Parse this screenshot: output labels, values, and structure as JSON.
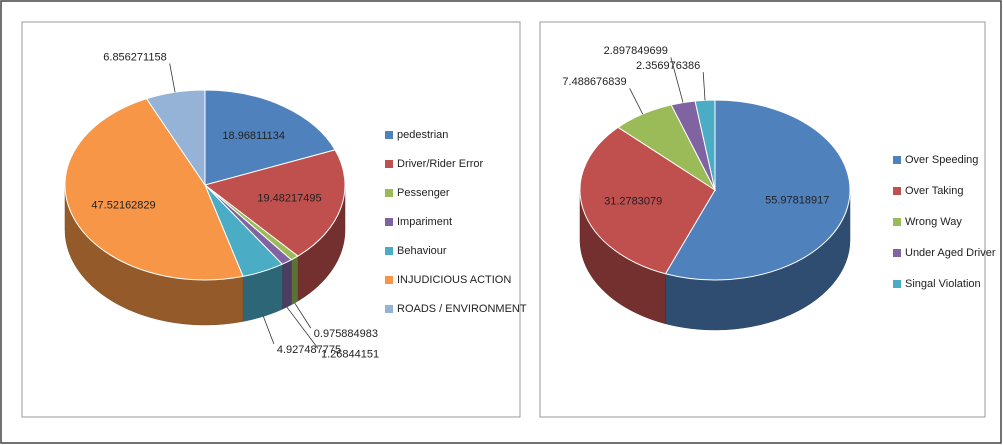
{
  "chart_data": [
    {
      "type": "pie",
      "categories": [
        "pedestrian",
        "Driver/Rider Error",
        "Pessenger",
        "Impariment",
        "Behaviour",
        "INJUDICIOUS ACTION",
        "ROADS / ENVIRONMENT"
      ],
      "values": [
        18.96811134,
        19.48217495,
        0.975884983,
        1.26844151,
        4.927487775,
        47.52162829,
        6.856271158
      ],
      "colors": [
        "#4f81bd",
        "#c0504d",
        "#9bbb59",
        "#8064a2",
        "#4bacc6",
        "#f79646",
        "#95b3d7"
      ],
      "legend": "right"
    },
    {
      "type": "pie",
      "categories": [
        "Over Speeding",
        "Over Taking",
        "Wrong Way",
        "Under Aged Driver",
        "Singal Violation"
      ],
      "values": [
        55.97818917,
        31.2783079,
        7.488676839,
        2.897849699,
        2.356976386
      ],
      "colors": [
        "#4f81bd",
        "#c0504d",
        "#9bbb59",
        "#8064a2",
        "#4bacc6"
      ],
      "legend": "right"
    }
  ]
}
